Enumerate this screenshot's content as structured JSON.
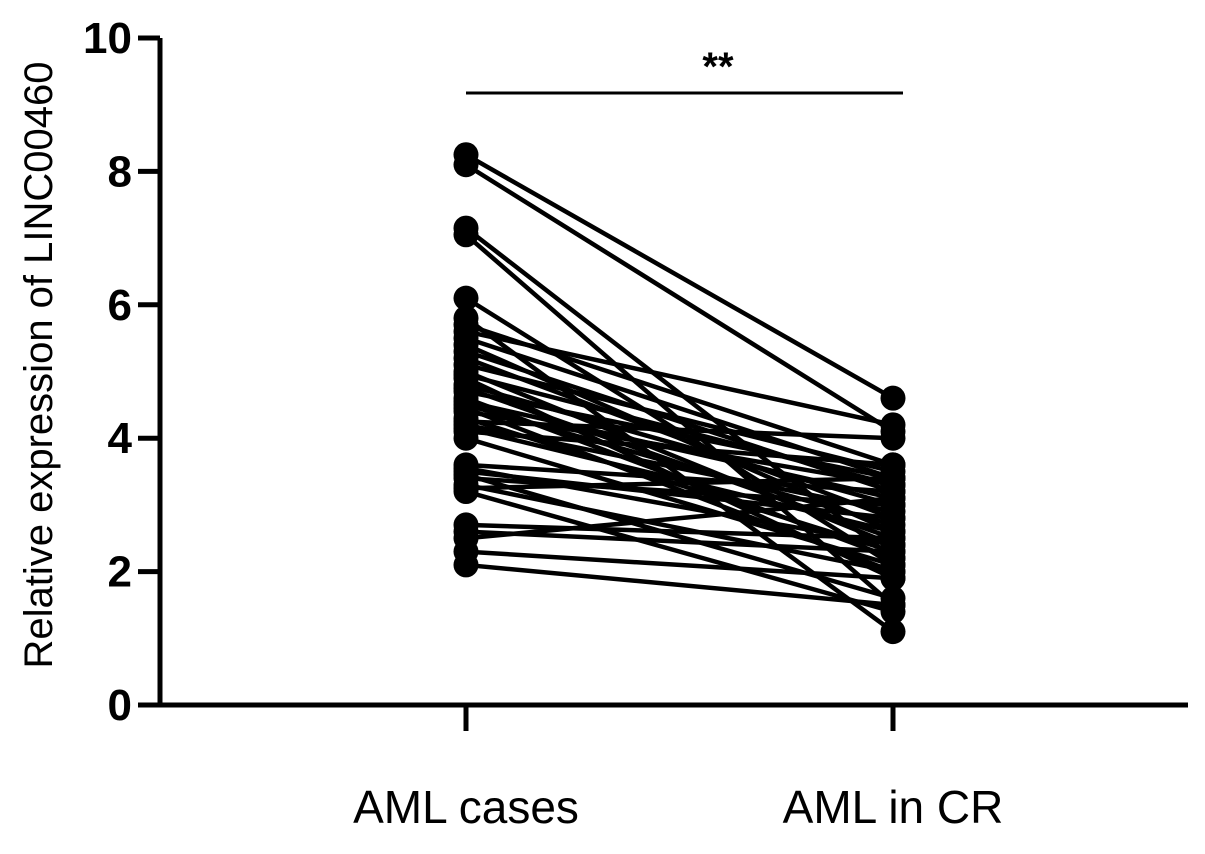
{
  "chart_data": {
    "type": "scatter",
    "subtype": "paired-line",
    "title": "",
    "xlabel": "",
    "ylabel": "Relative expression of LINC00460",
    "categories": [
      "AML cases",
      "AML in CR"
    ],
    "ylim": [
      0,
      10
    ],
    "yticks": [
      0,
      2,
      4,
      6,
      8,
      10
    ],
    "significance": {
      "label": "**",
      "between": [
        "AML cases",
        "AML in CR"
      ]
    },
    "marker_color": "#000000",
    "pairs": [
      [
        8.25,
        4.6
      ],
      [
        8.1,
        4.1
      ],
      [
        7.15,
        2.2
      ],
      [
        7.05,
        1.5
      ],
      [
        6.1,
        2.1
      ],
      [
        5.8,
        1.1
      ],
      [
        5.7,
        3.6
      ],
      [
        5.6,
        4.2
      ],
      [
        5.5,
        3.4
      ],
      [
        5.4,
        2.6
      ],
      [
        5.3,
        3.2
      ],
      [
        5.2,
        2.8
      ],
      [
        5.1,
        3.5
      ],
      [
        5.0,
        2.4
      ],
      [
        4.95,
        3.3
      ],
      [
        4.9,
        1.9
      ],
      [
        4.8,
        3.0
      ],
      [
        4.75,
        2.5
      ],
      [
        4.7,
        3.4
      ],
      [
        4.6,
        2.2
      ],
      [
        4.55,
        3.1
      ],
      [
        4.5,
        2.7
      ],
      [
        4.45,
        2.0
      ],
      [
        4.4,
        3.3
      ],
      [
        4.3,
        2.3
      ],
      [
        4.25,
        4.0
      ],
      [
        4.2,
        2.9
      ],
      [
        4.15,
        2.6
      ],
      [
        4.1,
        3.6
      ],
      [
        4.0,
        2.1
      ],
      [
        3.6,
        3.2
      ],
      [
        3.55,
        2.4
      ],
      [
        3.5,
        2.8
      ],
      [
        3.45,
        1.6
      ],
      [
        3.4,
        3.0
      ],
      [
        3.3,
        2.0
      ],
      [
        3.25,
        3.4
      ],
      [
        3.2,
        1.4
      ],
      [
        2.7,
        2.5
      ],
      [
        2.6,
        2.3
      ],
      [
        2.5,
        3.1
      ],
      [
        2.3,
        1.9
      ],
      [
        2.1,
        1.5
      ]
    ]
  }
}
